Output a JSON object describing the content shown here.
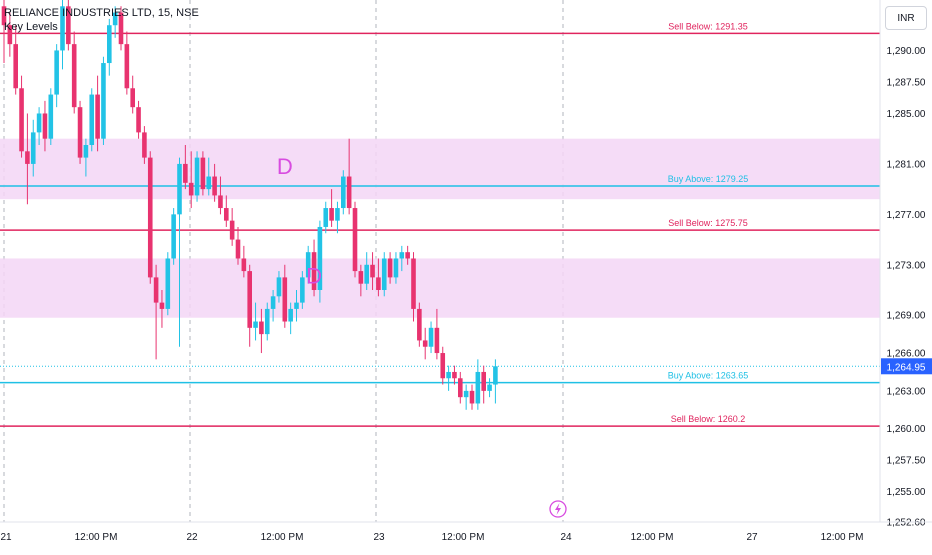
{
  "header": {
    "symbol": "RELIANCE INDUSTRIES LTD, 15, NSE",
    "indicator": "Key Levels",
    "currency": "INR"
  },
  "colors": {
    "up": "#22c3e6",
    "down": "#e8336f",
    "sell_line": "#e0245e",
    "buy_line": "#1fc0e5",
    "zone": "#f3d6f6",
    "marker": "#d84ce0",
    "price_tag": "#2962ff"
  },
  "chart_data": {
    "type": "candlestick",
    "ylim": [
      1252.6,
      1294.0
    ],
    "y_ticks": [
      "1,290.00",
      "1,287.50",
      "1,285.00",
      "1,281.00",
      "1,277.00",
      "1,273.00",
      "1,269.00",
      "1,266.00",
      "1,263.00",
      "1,260.00",
      "1,257.50",
      "1,255.00",
      "1,252.60"
    ],
    "x_ticks": [
      "21",
      "12:00 PM",
      "22",
      "12:00 PM",
      "23",
      "12:00 PM",
      "24",
      "12:00 PM",
      "27",
      "12:00 PM"
    ],
    "current_price": "1,264.95",
    "levels": [
      {
        "label": "Sell Below: 1291.35",
        "price": 1291.35,
        "kind": "sell"
      },
      {
        "label": "Buy Above: 1279.25",
        "price": 1279.25,
        "kind": "buy"
      },
      {
        "label": "Sell Below: 1275.75",
        "price": 1275.75,
        "kind": "sell"
      },
      {
        "label": "Buy Above: 1263.65",
        "price": 1263.65,
        "kind": "buy"
      },
      {
        "label": "Sell Below: 1260.2",
        "price": 1260.2,
        "kind": "sell"
      }
    ],
    "zones": [
      {
        "top": 1283.0,
        "bottom": 1278.2
      },
      {
        "top": 1273.5,
        "bottom": 1268.8
      }
    ],
    "markers": [
      {
        "text": "D",
        "bar": 48,
        "price": 1280.2
      },
      {
        "text": "D",
        "bar": 53,
        "price": 1271.5
      }
    ],
    "candles": [
      {
        "o": 1293.5,
        "h": 1294.0,
        "l": 1289.0,
        "c": 1292.0
      },
      {
        "o": 1292.0,
        "h": 1293.0,
        "l": 1289.5,
        "c": 1290.5
      },
      {
        "o": 1290.5,
        "h": 1292.0,
        "l": 1286.5,
        "c": 1287.0
      },
      {
        "o": 1287.0,
        "h": 1288.0,
        "l": 1281.5,
        "c": 1282.0
      },
      {
        "o": 1282.0,
        "h": 1285.0,
        "l": 1277.8,
        "c": 1281.0
      },
      {
        "o": 1281.0,
        "h": 1284.5,
        "l": 1280.0,
        "c": 1283.5
      },
      {
        "o": 1283.5,
        "h": 1285.5,
        "l": 1282.5,
        "c": 1285.0
      },
      {
        "o": 1285.0,
        "h": 1286.0,
        "l": 1282.0,
        "c": 1283.0
      },
      {
        "o": 1283.0,
        "h": 1287.0,
        "l": 1282.5,
        "c": 1286.5
      },
      {
        "o": 1286.5,
        "h": 1290.5,
        "l": 1285.5,
        "c": 1290.0
      },
      {
        "o": 1290.0,
        "h": 1294.0,
        "l": 1288.5,
        "c": 1293.5
      },
      {
        "o": 1293.5,
        "h": 1294.0,
        "l": 1290.0,
        "c": 1290.5
      },
      {
        "o": 1290.5,
        "h": 1291.5,
        "l": 1285.0,
        "c": 1285.5
      },
      {
        "o": 1285.5,
        "h": 1286.0,
        "l": 1281.0,
        "c": 1281.5
      },
      {
        "o": 1281.5,
        "h": 1283.0,
        "l": 1280.0,
        "c": 1282.5
      },
      {
        "o": 1282.5,
        "h": 1287.0,
        "l": 1282.0,
        "c": 1286.5
      },
      {
        "o": 1286.5,
        "h": 1288.0,
        "l": 1282.0,
        "c": 1283.0
      },
      {
        "o": 1283.0,
        "h": 1289.5,
        "l": 1282.5,
        "c": 1289.0
      },
      {
        "o": 1289.0,
        "h": 1292.5,
        "l": 1288.0,
        "c": 1292.0
      },
      {
        "o": 1292.0,
        "h": 1293.5,
        "l": 1291.0,
        "c": 1293.0
      },
      {
        "o": 1293.0,
        "h": 1293.5,
        "l": 1290.0,
        "c": 1290.5
      },
      {
        "o": 1290.5,
        "h": 1291.5,
        "l": 1286.5,
        "c": 1287.0
      },
      {
        "o": 1287.0,
        "h": 1288.0,
        "l": 1285.0,
        "c": 1285.5
      },
      {
        "o": 1285.5,
        "h": 1286.0,
        "l": 1283.0,
        "c": 1283.5
      },
      {
        "o": 1283.5,
        "h": 1284.0,
        "l": 1281.0,
        "c": 1281.5
      },
      {
        "o": 1281.5,
        "h": 1282.0,
        "l": 1271.5,
        "c": 1272.0
      },
      {
        "o": 1272.0,
        "h": 1273.0,
        "l": 1265.5,
        "c": 1270.0
      },
      {
        "o": 1270.0,
        "h": 1271.0,
        "l": 1268.0,
        "c": 1269.5
      },
      {
        "o": 1269.5,
        "h": 1274.0,
        "l": 1269.0,
        "c": 1273.5
      },
      {
        "o": 1273.5,
        "h": 1277.5,
        "l": 1273.0,
        "c": 1277.0
      },
      {
        "o": 1277.0,
        "h": 1281.5,
        "l": 1266.5,
        "c": 1281.0
      },
      {
        "o": 1281.0,
        "h": 1282.5,
        "l": 1279.0,
        "c": 1279.5
      },
      {
        "o": 1279.5,
        "h": 1282.0,
        "l": 1277.5,
        "c": 1278.5
      },
      {
        "o": 1278.5,
        "h": 1282.0,
        "l": 1278.0,
        "c": 1281.5
      },
      {
        "o": 1281.5,
        "h": 1282.0,
        "l": 1278.5,
        "c": 1279.0
      },
      {
        "o": 1279.0,
        "h": 1281.5,
        "l": 1278.5,
        "c": 1280.0
      },
      {
        "o": 1280.0,
        "h": 1281.0,
        "l": 1278.0,
        "c": 1278.5
      },
      {
        "o": 1278.5,
        "h": 1280.0,
        "l": 1277.0,
        "c": 1277.5
      },
      {
        "o": 1277.5,
        "h": 1278.5,
        "l": 1276.0,
        "c": 1276.5
      },
      {
        "o": 1276.5,
        "h": 1277.5,
        "l": 1274.5,
        "c": 1275.0
      },
      {
        "o": 1275.0,
        "h": 1276.0,
        "l": 1273.0,
        "c": 1273.5
      },
      {
        "o": 1273.5,
        "h": 1274.5,
        "l": 1272.0,
        "c": 1272.5
      },
      {
        "o": 1272.5,
        "h": 1273.0,
        "l": 1266.5,
        "c": 1268.0
      },
      {
        "o": 1268.0,
        "h": 1270.0,
        "l": 1267.0,
        "c": 1268.5
      },
      {
        "o": 1268.5,
        "h": 1269.5,
        "l": 1266.0,
        "c": 1267.5
      },
      {
        "o": 1267.5,
        "h": 1270.0,
        "l": 1267.0,
        "c": 1269.5
      },
      {
        "o": 1269.5,
        "h": 1271.0,
        "l": 1268.5,
        "c": 1270.5
      },
      {
        "o": 1270.5,
        "h": 1272.5,
        "l": 1270.0,
        "c": 1272.0
      },
      {
        "o": 1272.0,
        "h": 1273.0,
        "l": 1268.0,
        "c": 1268.5
      },
      {
        "o": 1268.5,
        "h": 1270.0,
        "l": 1267.5,
        "c": 1269.5
      },
      {
        "o": 1269.5,
        "h": 1271.0,
        "l": 1268.5,
        "c": 1270.0
      },
      {
        "o": 1270.0,
        "h": 1272.5,
        "l": 1269.5,
        "c": 1272.0
      },
      {
        "o": 1272.0,
        "h": 1274.5,
        "l": 1271.5,
        "c": 1274.0
      },
      {
        "o": 1274.0,
        "h": 1275.0,
        "l": 1270.5,
        "c": 1271.0
      },
      {
        "o": 1271.0,
        "h": 1276.5,
        "l": 1270.0,
        "c": 1276.0
      },
      {
        "o": 1276.0,
        "h": 1278.0,
        "l": 1275.5,
        "c": 1277.5
      },
      {
        "o": 1277.5,
        "h": 1279.0,
        "l": 1276.0,
        "c": 1276.5
      },
      {
        "o": 1276.5,
        "h": 1278.0,
        "l": 1275.5,
        "c": 1277.5
      },
      {
        "o": 1277.5,
        "h": 1280.5,
        "l": 1277.0,
        "c": 1280.0
      },
      {
        "o": 1280.0,
        "h": 1283.0,
        "l": 1277.0,
        "c": 1277.5
      },
      {
        "o": 1277.5,
        "h": 1278.0,
        "l": 1272.0,
        "c": 1272.5
      },
      {
        "o": 1272.5,
        "h": 1273.0,
        "l": 1270.5,
        "c": 1271.5
      },
      {
        "o": 1271.5,
        "h": 1274.0,
        "l": 1271.0,
        "c": 1273.0
      },
      {
        "o": 1273.0,
        "h": 1274.0,
        "l": 1271.0,
        "c": 1272.0
      },
      {
        "o": 1272.0,
        "h": 1273.5,
        "l": 1270.5,
        "c": 1271.0
      },
      {
        "o": 1271.0,
        "h": 1274.0,
        "l": 1270.5,
        "c": 1273.5
      },
      {
        "o": 1273.5,
        "h": 1274.0,
        "l": 1271.5,
        "c": 1272.0
      },
      {
        "o": 1272.0,
        "h": 1274.0,
        "l": 1271.5,
        "c": 1273.5
      },
      {
        "o": 1273.5,
        "h": 1274.5,
        "l": 1272.5,
        "c": 1274.0
      },
      {
        "o": 1274.0,
        "h": 1274.5,
        "l": 1273.0,
        "c": 1273.5
      },
      {
        "o": 1273.5,
        "h": 1274.0,
        "l": 1268.5,
        "c": 1269.5
      },
      {
        "o": 1269.5,
        "h": 1270.0,
        "l": 1266.5,
        "c": 1267.0
      },
      {
        "o": 1267.0,
        "h": 1268.0,
        "l": 1265.5,
        "c": 1266.5
      },
      {
        "o": 1266.5,
        "h": 1268.5,
        "l": 1266.0,
        "c": 1268.0
      },
      {
        "o": 1268.0,
        "h": 1269.5,
        "l": 1265.5,
        "c": 1266.0
      },
      {
        "o": 1266.0,
        "h": 1266.5,
        "l": 1263.5,
        "c": 1264.0
      },
      {
        "o": 1264.0,
        "h": 1265.0,
        "l": 1263.0,
        "c": 1264.5
      },
      {
        "o": 1264.5,
        "h": 1265.0,
        "l": 1263.5,
        "c": 1264.0
      },
      {
        "o": 1264.0,
        "h": 1264.5,
        "l": 1262.0,
        "c": 1262.5
      },
      {
        "o": 1262.5,
        "h": 1263.5,
        "l": 1261.5,
        "c": 1263.0
      },
      {
        "o": 1263.0,
        "h": 1263.5,
        "l": 1261.5,
        "c": 1262.0
      },
      {
        "o": 1262.0,
        "h": 1265.5,
        "l": 1261.5,
        "c": 1264.5
      },
      {
        "o": 1264.5,
        "h": 1265.0,
        "l": 1262.0,
        "c": 1263.0
      },
      {
        "o": 1263.0,
        "h": 1264.0,
        "l": 1262.5,
        "c": 1263.5
      },
      {
        "o": 1263.5,
        "h": 1265.5,
        "l": 1262.0,
        "c": 1264.95
      }
    ]
  }
}
